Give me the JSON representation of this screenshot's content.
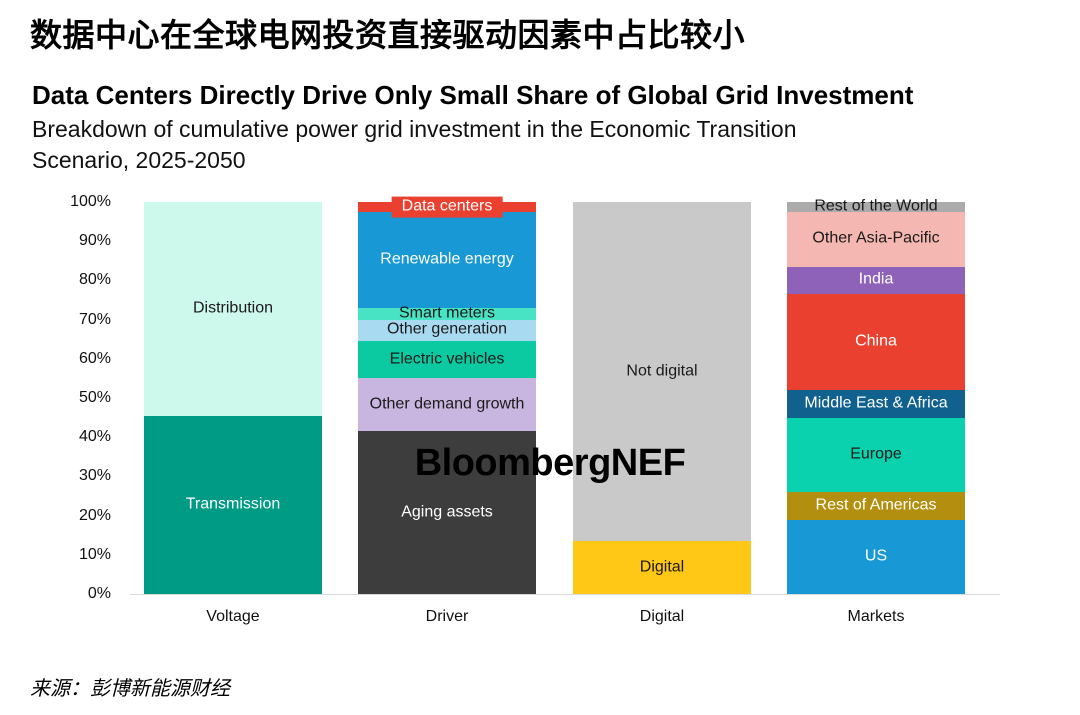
{
  "header": {
    "title_cn": "数据中心在全球电网投资直接驱动因素中占比较小",
    "title_en": "Data Centers Directly Drive Only Small Share of Global Grid Investment",
    "subtitle": "Breakdown of cumulative power grid investment in the Economic Transition\nScenario, 2025-2050"
  },
  "watermark": "BloombergNEF",
  "footer": {
    "source": "来源：彭博新能源财经"
  },
  "chart_data": {
    "type": "bar",
    "stacked": true,
    "percent_stacked": true,
    "title": "Data Centers Directly Drive Only Small Share of Global Grid Investment",
    "subtitle": "Breakdown of cumulative power grid investment in the Economic Transition Scenario, 2025-2050",
    "xlabel": "",
    "ylabel": "",
    "ylim": [
      0,
      100
    ],
    "grid": false,
    "legend": "labels drawn inside segments",
    "y_ticks": [
      "0%",
      "10%",
      "20%",
      "30%",
      "40%",
      "50%",
      "60%",
      "70%",
      "80%",
      "90%",
      "100%"
    ],
    "categories": [
      "Voltage",
      "Driver",
      "Digital",
      "Markets"
    ],
    "bars": [
      {
        "category": "Voltage",
        "segments": [
          {
            "label": "Transmission",
            "value": 45.5,
            "color": "#009B84",
            "text": "#FFFFFF"
          },
          {
            "label": "Distribution",
            "value": 54.5,
            "color": "#CDF8EC",
            "text": "#1A1A1A"
          }
        ]
      },
      {
        "category": "Driver",
        "segments": [
          {
            "label": "Aging assets",
            "value": 41.5,
            "color": "#3D3D3D",
            "text": "#FFFFFF"
          },
          {
            "label": "Other demand growth",
            "value": 13.5,
            "color": "#C9B6E0",
            "text": "#1A1A1A"
          },
          {
            "label": "Electric vehicles",
            "value": 9.5,
            "color": "#0BC9A0",
            "text": "#1A1A1A"
          },
          {
            "label": "Other generation",
            "value": 5.5,
            "color": "#A8DAF1",
            "text": "#1A1A1A"
          },
          {
            "label": "Smart meters",
            "value": 3,
            "color": "#48E2C5",
            "text": "#1A1A1A"
          },
          {
            "label": "Renewable energy",
            "value": 24.5,
            "color": "#1899D5",
            "text": "#FFFFFF"
          },
          {
            "label": "Data centers",
            "value": 2.5,
            "color": "#E9402F",
            "text": "#FFFFFF",
            "label_style": "box"
          }
        ]
      },
      {
        "category": "Digital",
        "segments": [
          {
            "label": "Digital",
            "value": 13.5,
            "color": "#FFC716",
            "text": "#1A1A1A"
          },
          {
            "label": "Not digital",
            "value": 86.5,
            "color": "#C9C9C9",
            "text": "#1A1A1A"
          }
        ]
      },
      {
        "category": "Markets",
        "segments": [
          {
            "label": "US",
            "value": 19,
            "color": "#1899D5",
            "text": "#FFFFFF"
          },
          {
            "label": "Rest of Americas",
            "value": 7,
            "color": "#B28F0E",
            "text": "#FFFFFF"
          },
          {
            "label": "Europe",
            "value": 19,
            "color": "#0BD2AE",
            "text": "#1A1A1A"
          },
          {
            "label": "Middle East & Africa",
            "value": 7,
            "color": "#11618F",
            "text": "#FFFFFF"
          },
          {
            "label": "China",
            "value": 24.5,
            "color": "#E9402F",
            "text": "#FFFFFF"
          },
          {
            "label": "India",
            "value": 7,
            "color": "#8E62B8",
            "text": "#FFFFFF"
          },
          {
            "label": "Other Asia-Pacific",
            "value": 14,
            "color": "#F5B7B1",
            "text": "#1A1A1A"
          },
          {
            "label": "Rest of the World",
            "value": 2.5,
            "color": "#ABABAB",
            "text": "#1A1A1A",
            "label_style": "overflow"
          }
        ]
      }
    ]
  }
}
